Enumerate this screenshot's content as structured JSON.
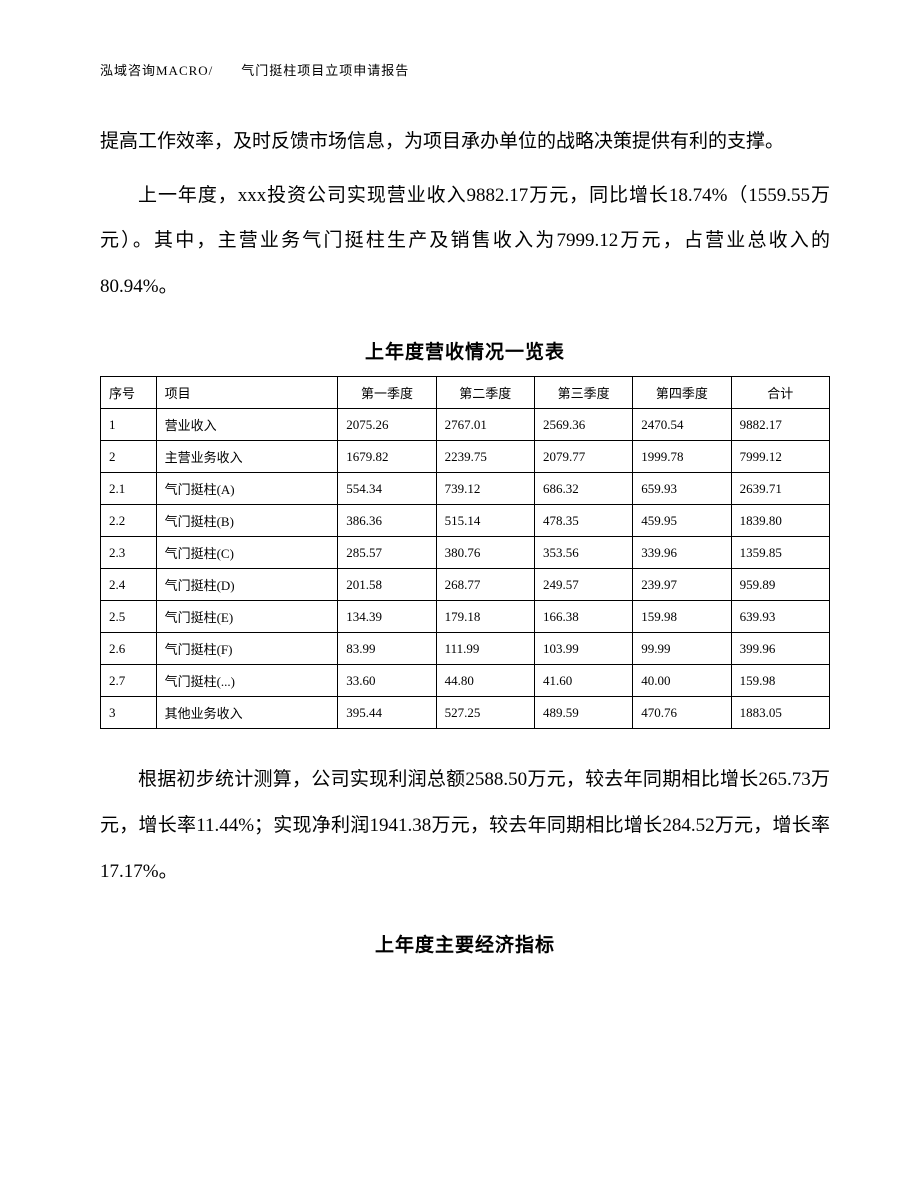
{
  "header": {
    "left": "泓域咨询MACRO/",
    "right": "气门挺柱项目立项申请报告"
  },
  "paragraphs": {
    "p1": "提高工作效率，及时反馈市场信息，为项目承办单位的战略决策提供有利的支撑。",
    "p2": "上一年度，xxx投资公司实现营业收入9882.17万元，同比增长18.74%（1559.55万元）。其中，主营业务气门挺柱生产及销售收入为7999.12万元，占营业总收入的80.94%。",
    "p3": "根据初步统计测算，公司实现利润总额2588.50万元，较去年同期相比增长265.73万元，增长率11.44%；实现净利润1941.38万元，较去年同期相比增长284.52万元，增长率17.17%。"
  },
  "table1": {
    "title": "上年度营收情况一览表",
    "columns": [
      "序号",
      "项目",
      "第一季度",
      "第二季度",
      "第三季度",
      "第四季度",
      "合计"
    ],
    "rows": [
      [
        "1",
        "营业收入",
        "2075.26",
        "2767.01",
        "2569.36",
        "2470.54",
        "9882.17"
      ],
      [
        "2",
        "主营业务收入",
        "1679.82",
        "2239.75",
        "2079.77",
        "1999.78",
        "7999.12"
      ],
      [
        "2.1",
        "气门挺柱(A)",
        "554.34",
        "739.12",
        "686.32",
        "659.93",
        "2639.71"
      ],
      [
        "2.2",
        "气门挺柱(B)",
        "386.36",
        "515.14",
        "478.35",
        "459.95",
        "1839.80"
      ],
      [
        "2.3",
        "气门挺柱(C)",
        "285.57",
        "380.76",
        "353.56",
        "339.96",
        "1359.85"
      ],
      [
        "2.4",
        "气门挺柱(D)",
        "201.58",
        "268.77",
        "249.57",
        "239.97",
        "959.89"
      ],
      [
        "2.5",
        "气门挺柱(E)",
        "134.39",
        "179.18",
        "166.38",
        "159.98",
        "639.93"
      ],
      [
        "2.6",
        "气门挺柱(F)",
        "83.99",
        "111.99",
        "103.99",
        "99.99",
        "399.96"
      ],
      [
        "2.7",
        "气门挺柱(...)",
        "33.60",
        "44.80",
        "41.60",
        "40.00",
        "159.98"
      ],
      [
        "3",
        "其他业务收入",
        "395.44",
        "527.25",
        "489.59",
        "470.76",
        "1883.05"
      ]
    ]
  },
  "section2_title": "上年度主要经济指标"
}
